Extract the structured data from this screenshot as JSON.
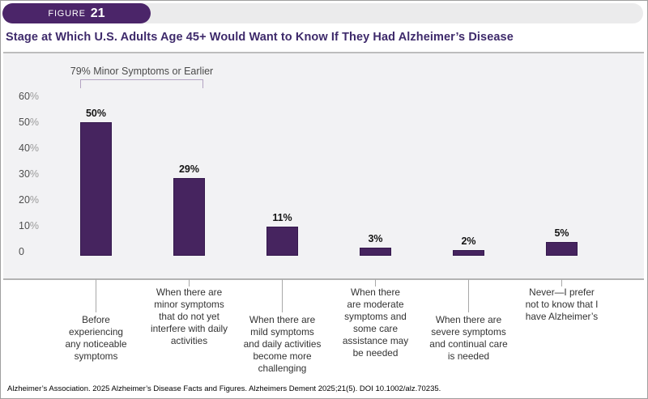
{
  "figure_badge": {
    "label": "FIGURE",
    "number": "21"
  },
  "title": "Stage at Which U.S. Adults Age 45+ Would Want to Know If They Had Alzheimer’s Disease",
  "chart_data": {
    "type": "bar",
    "title": "Stage at Which U.S. Adults Age 45+ Would Want to Know If They Had Alzheimer’s Disease",
    "categories": [
      "Before\nexperiencing\nany noticeable\nsymptoms",
      "When there are\nminor symptoms\nthat do not yet\ninterfere with daily\nactivities",
      "When there are\nmild symptoms\nand daily activities\nbecome more\nchallenging",
      "When there\nare moderate\nsymptoms and\nsome care\nassistance may\nbe needed",
      "When there are\nsevere symptoms\nand continual care\nis needed",
      "Never—I prefer\nnot to know that I\nhave Alzheimer’s"
    ],
    "values": [
      50,
      29,
      11,
      3,
      2,
      5
    ],
    "value_labels": [
      "50%",
      "29%",
      "11%",
      "3%",
      "2%",
      "5%"
    ],
    "y_ticks": [
      "60%",
      "50%",
      "40%",
      "30%",
      "20%",
      "10%",
      "0"
    ],
    "ylim": [
      0,
      60
    ],
    "grid": false,
    "legend": "none",
    "annotation": "79% Minor Symptoms or Earlier",
    "annotation_covers": [
      "Before experiencing any noticeable symptoms",
      "When there are minor symptoms that do not yet interfere with daily activities"
    ],
    "colors": {
      "bar_fill": "#46245f",
      "bar_edge": "#35194d",
      "badge_purple": "#4b2569",
      "title_purple": "#3e2a6b",
      "plot_background": "#f2f2f4",
      "bracket": "#b3a3c2"
    }
  },
  "footer": "Alzheimer’s Association. 2025 Alzheimer’s Disease Facts and Figures. Alzheimers Dement 2025;21(5). DOI 10.1002/alz.70235."
}
